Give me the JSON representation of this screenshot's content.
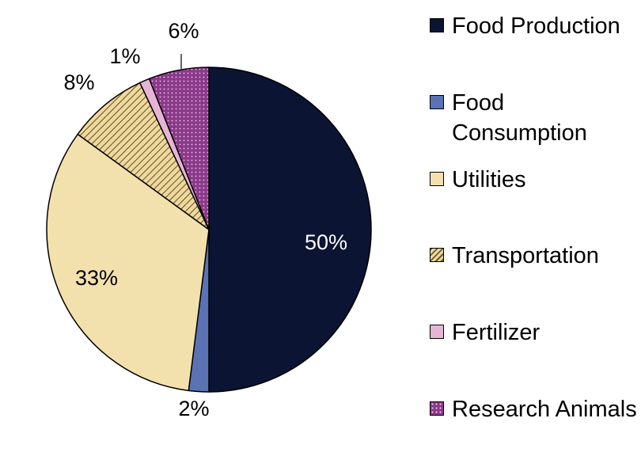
{
  "chart_data": {
    "type": "pie",
    "title": "",
    "series": [
      {
        "name": "Food Production",
        "value": 50,
        "label": "50%",
        "color": "#0b1433",
        "pattern": "solid",
        "label_color": "#ffffff"
      },
      {
        "name": "Food Consumption",
        "value": 2,
        "label": "2%",
        "color": "#5b73b5",
        "pattern": "solid",
        "label_color": "#000000"
      },
      {
        "name": "Utilities",
        "value": 33,
        "label": "33%",
        "color": "#f3e1ad",
        "pattern": "solid",
        "label_color": "#000000"
      },
      {
        "name": "Transportation",
        "value": 8,
        "label": "8%",
        "color": "#e8d296",
        "pattern": "diagonal-stripes",
        "label_color": "#000000"
      },
      {
        "name": "Fertilizer",
        "value": 1,
        "label": "1%",
        "color": "#e6b5d6",
        "pattern": "solid",
        "label_color": "#000000"
      },
      {
        "name": "Research Animals",
        "value": 6,
        "label": "6%",
        "color": "#8b3a8a",
        "pattern": "dots",
        "label_color": "#000000"
      }
    ],
    "legend_position": "right",
    "start_angle": "12 o'clock",
    "direction": "clockwise"
  }
}
